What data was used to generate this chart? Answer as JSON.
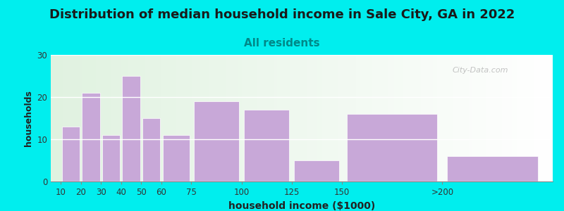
{
  "title": "Distribution of median household income in Sale City, GA in 2022",
  "subtitle": "All residents",
  "xlabel": "household income ($1000)",
  "ylabel": "households",
  "background_color": "#00EEEE",
  "bar_color": "#c8a8d8",
  "bar_edge_color": "#c8a8d8",
  "categories": [
    "10",
    "20",
    "30",
    "40",
    "50",
    "60",
    "75",
    "100",
    "125",
    "150",
    ">200"
  ],
  "values": [
    13,
    21,
    11,
    25,
    15,
    11,
    19,
    17,
    5,
    16,
    6
  ],
  "ylim": [
    0,
    30
  ],
  "yticks": [
    0,
    10,
    20,
    30
  ],
  "title_fontsize": 13,
  "subtitle_fontsize": 11,
  "xlabel_fontsize": 10,
  "ylabel_fontsize": 9,
  "watermark": "City-Data.com",
  "x_positions": [
    10,
    20,
    30,
    40,
    50,
    60,
    75,
    100,
    125,
    150,
    200
  ],
  "widths": [
    10,
    10,
    10,
    10,
    10,
    15,
    25,
    25,
    25,
    50,
    50
  ],
  "xlim_left": 5,
  "xlim_right": 255
}
